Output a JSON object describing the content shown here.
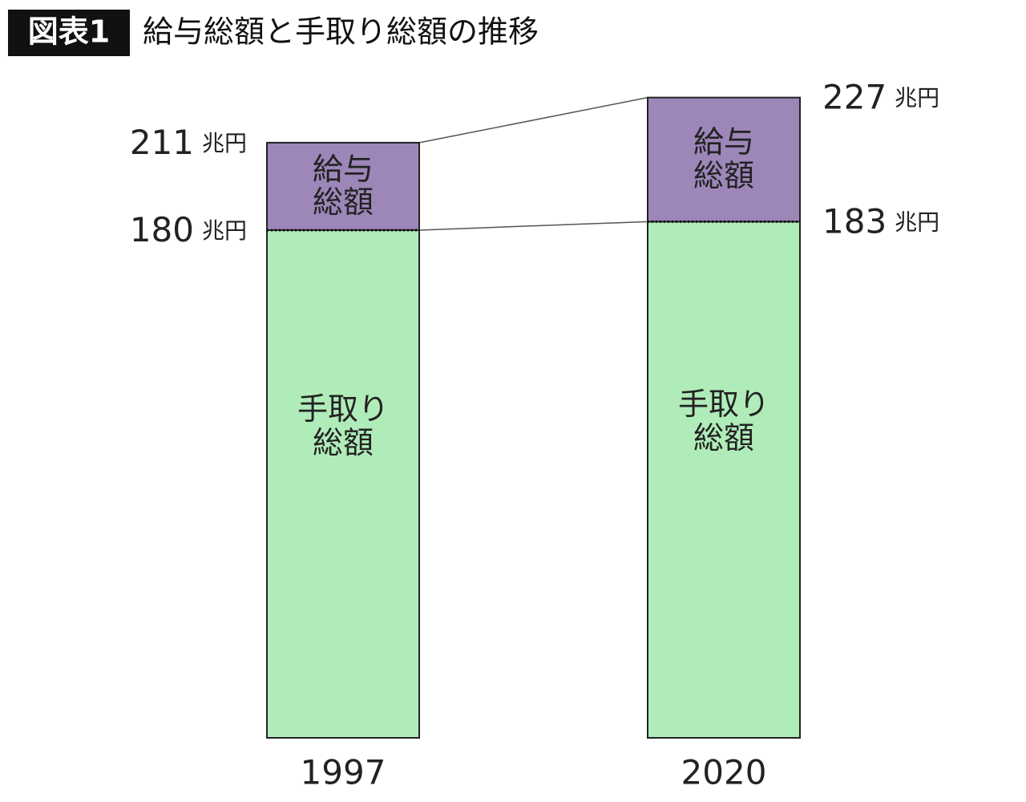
{
  "chart_data": {
    "type": "overlap-bar",
    "figure_label": "図表1",
    "title": "給与総額と手取り総額の推移",
    "unit": "兆円",
    "categories": [
      "1997",
      "2020"
    ],
    "series": [
      {
        "name": "給与\n総額",
        "color": "#9d86b8",
        "values": [
          211,
          227
        ]
      },
      {
        "name": "手取り\n総額",
        "color": "#b0ecb9",
        "values": [
          180,
          183
        ]
      }
    ]
  }
}
